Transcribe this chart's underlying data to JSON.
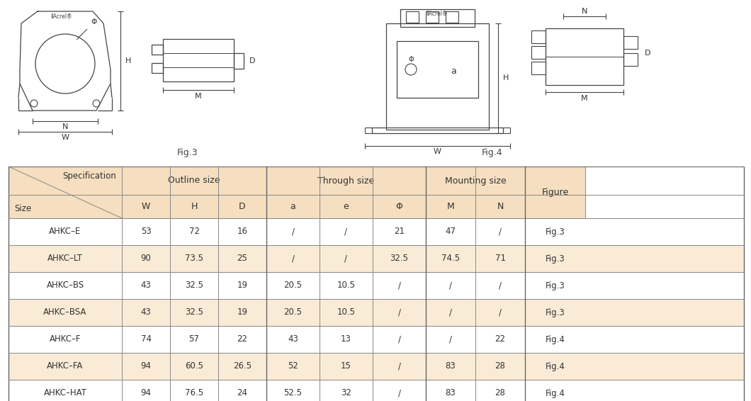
{
  "header_bg": "#f5dfc0",
  "row_bg_alt": "#faebd7",
  "row_bg_white": "#ffffff",
  "border_color": "#666666",
  "rows": [
    {
      "spec": "AHKC–E",
      "W": "53",
      "H": "72",
      "D": "16",
      "a": "/",
      "e": "/",
      "phi": "21",
      "M": "47",
      "N": "/",
      "fig": "Fig.3",
      "alt": false
    },
    {
      "spec": "AHKC–LT",
      "W": "90",
      "H": "73.5",
      "D": "25",
      "a": "/",
      "e": "/",
      "phi": "32.5",
      "M": "74.5",
      "N": "71",
      "fig": "Fig.3",
      "alt": true
    },
    {
      "spec": "AHKC–BS",
      "W": "43",
      "H": "32.5",
      "D": "19",
      "a": "20.5",
      "e": "10.5",
      "phi": "/",
      "M": "/",
      "N": "/",
      "fig": "Fig.3",
      "alt": false
    },
    {
      "spec": "AHKC–BSA",
      "W": "43",
      "H": "32.5",
      "D": "19",
      "a": "20.5",
      "e": "10.5",
      "phi": "/",
      "M": "/",
      "N": "/",
      "fig": "Fig.3",
      "alt": true
    },
    {
      "spec": "AHKC–F",
      "W": "74",
      "H": "57",
      "D": "22",
      "a": "43",
      "e": "13",
      "phi": "/",
      "M": "/",
      "N": "22",
      "fig": "Fig.4",
      "alt": false
    },
    {
      "spec": "AHKC–FA",
      "W": "94",
      "H": "60.5",
      "D": "26.5",
      "a": "52",
      "e": "15",
      "phi": "/",
      "M": "83",
      "N": "28",
      "fig": "Fig.4",
      "alt": true
    },
    {
      "spec": "AHKC–HAT",
      "W": "94",
      "H": "76.5",
      "D": "24",
      "a": "52.5",
      "e": "32",
      "phi": "/",
      "M": "83",
      "N": "28",
      "fig": "Fig.4",
      "alt": false
    }
  ]
}
